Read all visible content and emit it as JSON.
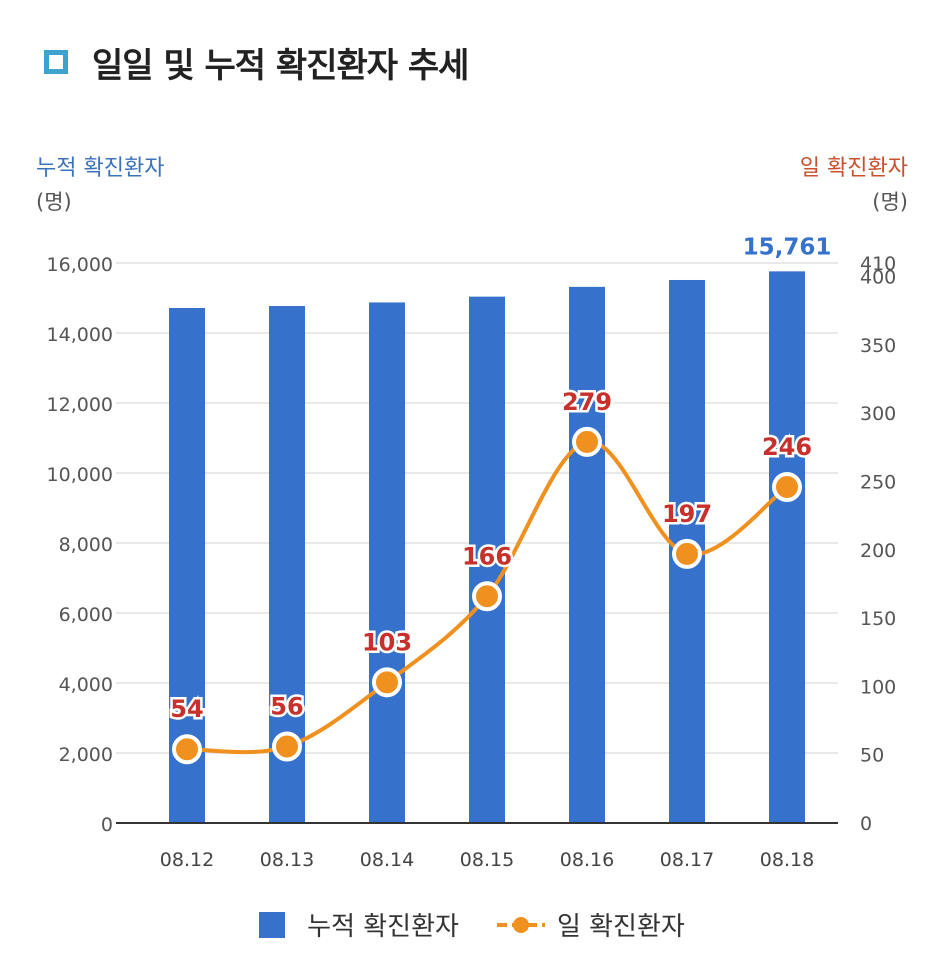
{
  "title": "일일 및 누적 확진환자 추세",
  "left_axis": {
    "title": "누적 확진환자",
    "unit": "(명)"
  },
  "right_axis": {
    "title": "일 확진환자",
    "unit": "(명)"
  },
  "colors": {
    "bar": "#3671cc",
    "line": "#f0901e",
    "line_label": "#c8312b",
    "bar_label": "#3671cc",
    "left_axis_title": "#3b73b9",
    "right_axis_title": "#c8502b",
    "title_icon": "#3fa3d0"
  },
  "chart_data": {
    "type": "bar",
    "categories": [
      "08.12",
      "08.13",
      "08.14",
      "08.15",
      "08.16",
      "08.17",
      "08.18"
    ],
    "series": [
      {
        "name": "누적 확진환자",
        "type": "bar",
        "axis": "left",
        "values": [
          14714,
          14770,
          14873,
          15039,
          15318,
          15515,
          15761
        ]
      },
      {
        "name": "일 확진환자",
        "type": "line",
        "axis": "right",
        "values": [
          54,
          56,
          103,
          166,
          279,
          197,
          246
        ]
      }
    ],
    "left_ylim": [
      0,
      16000
    ],
    "left_ticks": [
      "0",
      "2,000",
      "4,000",
      "6,000",
      "8,000",
      "10,000",
      "12,000",
      "14,000",
      "16,000"
    ],
    "right_ylim": [
      0,
      410
    ],
    "right_ticks": [
      "0",
      "50",
      "100",
      "150",
      "200",
      "250",
      "300",
      "350",
      "400",
      "410"
    ],
    "bar_data_labels": [
      "",
      "",
      "",
      "",
      "",
      "",
      "15,761"
    ],
    "line_data_labels": [
      "54",
      "56",
      "103",
      "166",
      "279",
      "197",
      "246"
    ],
    "grid": true,
    "legend_position": "bottom"
  }
}
